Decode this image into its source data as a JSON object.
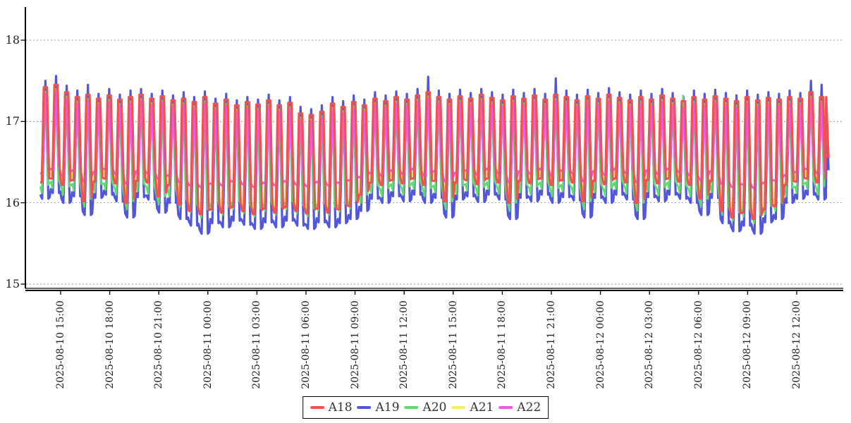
{
  "chart_data": {
    "type": "line",
    "title": "",
    "xlabel": "",
    "ylabel": "",
    "background": "#ffffff",
    "grid": "horizontal-dashed",
    "grid_color": "#999999",
    "axis_color": "#000000",
    "legend_position": "bottom-center",
    "y_axis": {
      "tick_labels": [
        "18",
        "17",
        "16",
        "15"
      ],
      "tick_values": [
        18,
        17,
        16,
        15
      ],
      "range": [
        14.94,
        18.42
      ]
    },
    "x_axis": {
      "tick_labels": [
        "2025-08-10 15:00",
        "2025-08-10 18:00",
        "2025-08-10 21:00",
        "2025-08-11 00:00",
        "2025-08-11 03:00",
        "2025-08-11 06:00",
        "2025-08-11 09:00",
        "2025-08-11 12:00",
        "2025-08-11 15:00",
        "2025-08-11 18:00",
        "2025-08-11 21:00",
        "2025-08-12 00:00",
        "2025-08-12 03:00",
        "2025-08-12 06:00",
        "2025-08-12 09:00",
        "2025-08-12 12:00"
      ],
      "tick_hours": [
        1.25,
        4.25,
        7.25,
        10.25,
        13.25,
        16.25,
        19.25,
        22.25,
        25.25,
        28.25,
        31.25,
        34.25,
        37.25,
        40.25,
        43.25,
        46.25
      ],
      "range_hours": [
        -0.9,
        49.1
      ],
      "data_start": "2025-08-10 13:45",
      "data_end": "2025-08-12 13:55"
    },
    "legend": {
      "items": [
        {
          "label": "A18",
          "color": "#ef5350"
        },
        {
          "label": "A19",
          "color": "#5157d8"
        },
        {
          "label": "A20",
          "color": "#63da6e"
        },
        {
          "label": "A21",
          "color": "#f3ef64"
        },
        {
          "label": "A22",
          "color": "#ec59e2"
        }
      ]
    },
    "period_hours": 0.65,
    "series": [
      {
        "name": "A18",
        "color": "#ef5350",
        "z": 5,
        "width": 3.2,
        "shape": [
          [
            0,
            "T",
            0
          ],
          [
            0.1,
            "T",
            0
          ],
          [
            0.22,
            "P",
            0
          ],
          [
            0.42,
            "P",
            0
          ],
          [
            0.55,
            "T",
            0.05
          ]
        ],
        "peaks": [
          17.42,
          17.45,
          17.36,
          17.3,
          17.33,
          17.28,
          17.32,
          17.27,
          17.3,
          17.33,
          17.28,
          17.31,
          17.26,
          17.28,
          17.24,
          17.3,
          17.22,
          17.27,
          17.2,
          17.24,
          17.21,
          17.26,
          17.2,
          17.23,
          17.1,
          17.08,
          17.12,
          17.22,
          17.18,
          17.24,
          17.2,
          17.28,
          17.25,
          17.3,
          17.27,
          17.32,
          17.36,
          17.3,
          17.27,
          17.31,
          17.28,
          17.33,
          17.29,
          17.26,
          17.31,
          17.28,
          17.32,
          17.27,
          17.33,
          17.3,
          17.26,
          17.31,
          17.28,
          17.33,
          17.29,
          17.26,
          17.3,
          17.27,
          17.32,
          17.28,
          17.25,
          17.3,
          17.27,
          17.31,
          17.28,
          17.25,
          17.3,
          17.26,
          17.29,
          17.27,
          17.3,
          17.28,
          17.36,
          17.3
        ],
        "troughs": [
          16.25,
          16.3,
          16.22,
          16.28,
          16.02,
          16.26,
          16.3,
          16.24,
          16.0,
          16.27,
          16.25,
          16.08,
          16.22,
          15.98,
          15.9,
          15.86,
          15.92,
          15.88,
          15.95,
          15.9,
          15.86,
          15.93,
          15.88,
          15.95,
          15.9,
          15.87,
          15.93,
          15.88,
          15.92,
          15.96,
          16.1,
          16.25,
          16.22,
          16.28,
          16.24,
          16.3,
          16.22,
          16.27,
          16.02,
          16.25,
          16.28,
          16.23,
          16.3,
          16.25,
          16.0,
          16.27,
          16.24,
          16.3,
          16.22,
          16.28,
          16.25,
          16.02,
          16.27,
          16.23,
          16.3,
          16.25,
          16.0,
          16.28,
          16.24,
          16.3,
          16.26,
          16.22,
          16.05,
          16.27,
          15.9,
          15.82,
          15.88,
          15.8,
          15.92,
          15.96,
          16.22,
          16.26,
          16.3,
          16.25
        ],
        "tail": [
          [
            48.05,
            17.3
          ],
          [
            48.2,
            16.55
          ]
        ]
      },
      {
        "name": "A19",
        "color": "#5157d8",
        "z": 2,
        "width": 3.2,
        "shape": [
          [
            0,
            "T",
            0.05
          ],
          [
            0.12,
            "T",
            0
          ],
          [
            0.32,
            "P",
            0
          ],
          [
            0.5,
            "T",
            0
          ],
          [
            0.58,
            "T",
            0.02
          ]
        ],
        "peaks": [
          17.5,
          17.56,
          17.44,
          17.38,
          17.45,
          17.34,
          17.4,
          17.33,
          17.38,
          17.4,
          17.34,
          17.38,
          17.32,
          17.36,
          17.3,
          17.37,
          17.28,
          17.34,
          17.26,
          17.3,
          17.27,
          17.33,
          17.26,
          17.3,
          17.18,
          17.15,
          17.2,
          17.3,
          17.25,
          17.32,
          17.27,
          17.36,
          17.32,
          17.37,
          17.34,
          17.4,
          17.55,
          17.38,
          17.34,
          17.39,
          17.35,
          17.4,
          17.36,
          17.33,
          17.39,
          17.35,
          17.4,
          17.34,
          17.53,
          17.38,
          17.33,
          17.39,
          17.35,
          17.41,
          17.36,
          17.33,
          17.38,
          17.34,
          17.4,
          17.35,
          17.31,
          17.38,
          17.34,
          17.39,
          17.35,
          17.32,
          17.38,
          17.33,
          17.36,
          17.34,
          17.38,
          17.35,
          17.5,
          17.45
        ],
        "troughs": [
          16.05,
          16.12,
          16.0,
          16.08,
          15.85,
          16.06,
          16.1,
          16.02,
          15.82,
          16.07,
          16.04,
          15.88,
          16.0,
          15.8,
          15.72,
          15.62,
          15.75,
          15.7,
          15.78,
          15.73,
          15.68,
          15.76,
          15.7,
          15.78,
          15.72,
          15.68,
          15.76,
          15.7,
          15.75,
          15.8,
          15.9,
          16.05,
          16.0,
          16.08,
          16.02,
          16.1,
          16.0,
          16.06,
          15.82,
          16.04,
          16.08,
          16.01,
          16.1,
          16.04,
          15.8,
          16.06,
          16.02,
          16.1,
          16.0,
          16.07,
          16.03,
          15.82,
          16.06,
          16.0,
          16.1,
          16.04,
          15.8,
          16.07,
          16.02,
          16.1,
          16.05,
          16.0,
          15.85,
          16.06,
          15.75,
          15.65,
          15.72,
          15.62,
          15.76,
          15.8,
          16.0,
          16.05,
          16.1,
          16.04
        ],
        "tail": [
          [
            48.1,
            17.0
          ],
          [
            48.2,
            16.4
          ]
        ]
      },
      {
        "name": "A20",
        "color": "#63da6e",
        "z": 3,
        "width": 2.6,
        "shape": [
          [
            0,
            "T",
            0.08
          ],
          [
            0.1,
            "T",
            0
          ],
          [
            0.3,
            "P",
            0
          ],
          [
            0.48,
            "T",
            0.1
          ]
        ],
        "peaks": [
          17.37,
          17.4,
          17.31,
          17.25,
          17.28,
          17.23,
          17.27,
          17.22,
          17.25,
          17.28,
          17.23,
          17.26,
          17.21,
          17.23,
          17.19,
          17.25,
          17.17,
          17.22,
          17.15,
          17.19,
          17.16,
          17.21,
          17.15,
          17.18,
          17.05,
          17.03,
          17.07,
          17.17,
          17.13,
          17.19,
          17.15,
          17.23,
          17.2,
          17.25,
          17.22,
          17.27,
          17.31,
          17.25,
          17.22,
          17.26,
          17.23,
          17.28,
          17.24,
          17.21,
          17.26,
          17.23,
          17.27,
          17.22,
          17.28,
          17.25,
          17.21,
          17.26,
          17.23,
          17.28,
          17.24,
          17.21,
          17.25,
          17.22,
          17.27,
          17.23,
          17.32,
          17.25,
          17.22,
          17.26,
          17.23,
          17.2,
          17.25,
          17.21,
          17.24,
          17.22,
          17.25,
          17.23,
          17.31,
          17.25
        ],
        "troughs": [
          16.12,
          16.18,
          16.1,
          16.15,
          15.95,
          16.13,
          16.16,
          16.1,
          15.92,
          16.14,
          16.11,
          15.98,
          16.08,
          15.95,
          15.88,
          15.82,
          15.9,
          15.85,
          15.92,
          15.87,
          15.83,
          15.9,
          15.85,
          15.92,
          15.87,
          15.83,
          15.9,
          15.85,
          15.89,
          15.93,
          16.0,
          16.12,
          16.08,
          16.15,
          16.1,
          16.17,
          16.08,
          16.13,
          15.92,
          16.11,
          16.15,
          16.09,
          16.17,
          16.11,
          15.9,
          16.13,
          16.1,
          16.17,
          16.08,
          16.14,
          16.1,
          15.92,
          16.13,
          16.08,
          16.17,
          16.11,
          15.9,
          16.14,
          16.09,
          16.17,
          16.12,
          16.08,
          15.95,
          16.13,
          15.85,
          15.78,
          15.83,
          15.75,
          15.86,
          15.9,
          16.08,
          16.12,
          16.17,
          16.1
        ],
        "tail": [
          [
            48.0,
            16.5
          ]
        ]
      },
      {
        "name": "A21",
        "color": "#f3ef64",
        "z": 1,
        "width": 2.6,
        "shape": [
          [
            0.05,
            "T",
            0
          ],
          [
            0.3,
            "P",
            0
          ],
          [
            0.5,
            "T",
            0.15
          ]
        ],
        "peaks": [
          17.38,
          17.41,
          17.32,
          17.26,
          17.29,
          17.24,
          17.28,
          17.23,
          17.26,
          17.29,
          17.24,
          17.27,
          17.22,
          17.24,
          17.31,
          17.26,
          17.18,
          17.23,
          17.16,
          17.31,
          17.17,
          17.22,
          17.16,
          17.19,
          17.06,
          17.15,
          17.08,
          17.18,
          17.14,
          17.2,
          17.16,
          17.24,
          17.21,
          17.37,
          17.23,
          17.28,
          17.32,
          17.26,
          17.34,
          17.27,
          17.24,
          17.29,
          17.25,
          17.22,
          17.38,
          17.24,
          17.28,
          17.23,
          17.29,
          17.26,
          17.22,
          17.27,
          17.35,
          17.29,
          17.25,
          17.22,
          17.26,
          17.23,
          17.28,
          17.24,
          17.21,
          17.26,
          17.23,
          17.38,
          17.24,
          17.21,
          17.26,
          17.22,
          17.25,
          17.23,
          17.26,
          17.24,
          17.32,
          17.26
        ],
        "troughs": [
          16.28,
          16.33,
          16.25,
          16.31,
          16.05,
          16.29,
          16.33,
          16.27,
          16.03,
          16.3,
          16.28,
          16.11,
          16.25,
          16.01,
          15.93,
          15.89,
          15.95,
          15.91,
          15.98,
          15.93,
          15.89,
          15.96,
          15.91,
          15.98,
          15.93,
          15.9,
          15.96,
          15.91,
          15.95,
          15.99,
          16.13,
          16.28,
          16.25,
          16.31,
          16.27,
          16.33,
          16.25,
          16.3,
          16.05,
          16.28,
          16.31,
          16.26,
          16.33,
          16.28,
          16.03,
          16.3,
          16.27,
          16.33,
          16.25,
          16.31,
          16.28,
          16.05,
          16.3,
          16.26,
          16.33,
          16.28,
          16.03,
          16.31,
          16.27,
          16.33,
          16.29,
          16.25,
          16.08,
          16.3,
          15.93,
          15.85,
          15.91,
          15.83,
          15.95,
          15.99,
          16.25,
          16.29,
          16.33,
          16.28
        ],
        "tail": [
          [
            48.0,
            16.6
          ]
        ]
      },
      {
        "name": "A22",
        "color": "#ec59e2",
        "z": 4,
        "width": 2.8,
        "shape": [
          [
            0,
            "T",
            0.02
          ],
          [
            0.15,
            "T",
            0
          ],
          [
            0.33,
            "P",
            0
          ],
          [
            0.5,
            "T",
            0.04
          ]
        ],
        "peaks": [
          17.34,
          17.37,
          17.28,
          17.22,
          17.25,
          17.2,
          17.24,
          17.19,
          17.22,
          17.25,
          17.2,
          17.23,
          17.18,
          17.2,
          17.16,
          17.22,
          17.14,
          17.19,
          17.12,
          17.16,
          17.13,
          17.18,
          17.12,
          17.15,
          17.02,
          17.0,
          17.04,
          17.14,
          17.1,
          17.16,
          17.12,
          17.2,
          17.17,
          17.22,
          17.19,
          17.24,
          17.28,
          17.22,
          17.19,
          17.23,
          17.2,
          17.25,
          17.21,
          17.18,
          17.23,
          17.2,
          17.24,
          17.19,
          17.25,
          17.22,
          17.18,
          17.23,
          17.2,
          17.25,
          17.21,
          17.18,
          17.22,
          17.19,
          17.24,
          17.2,
          17.17,
          17.22,
          17.19,
          17.23,
          17.2,
          17.17,
          17.22,
          17.18,
          17.21,
          17.19,
          17.22,
          17.2,
          17.28,
          17.22
        ],
        "troughs": [
          16.35,
          16.4,
          16.32,
          16.38,
          16.25,
          16.36,
          16.4,
          16.34,
          16.22,
          16.37,
          16.35,
          16.28,
          16.32,
          16.24,
          16.2,
          16.18,
          16.22,
          16.2,
          16.25,
          16.21,
          16.18,
          16.23,
          16.2,
          16.25,
          16.21,
          16.19,
          16.24,
          16.2,
          16.23,
          16.26,
          16.3,
          16.35,
          16.32,
          16.38,
          16.34,
          16.4,
          16.32,
          16.37,
          16.25,
          16.35,
          16.38,
          16.33,
          16.4,
          16.35,
          16.24,
          16.37,
          16.34,
          16.4,
          16.32,
          16.38,
          16.35,
          16.25,
          16.37,
          16.33,
          16.4,
          16.35,
          16.24,
          16.38,
          16.34,
          16.4,
          16.36,
          16.32,
          16.27,
          16.37,
          16.22,
          16.18,
          16.21,
          16.17,
          16.23,
          16.26,
          16.32,
          16.36,
          16.4,
          16.35
        ],
        "tail": [
          [
            48.05,
            16.6
          ]
        ]
      }
    ]
  }
}
